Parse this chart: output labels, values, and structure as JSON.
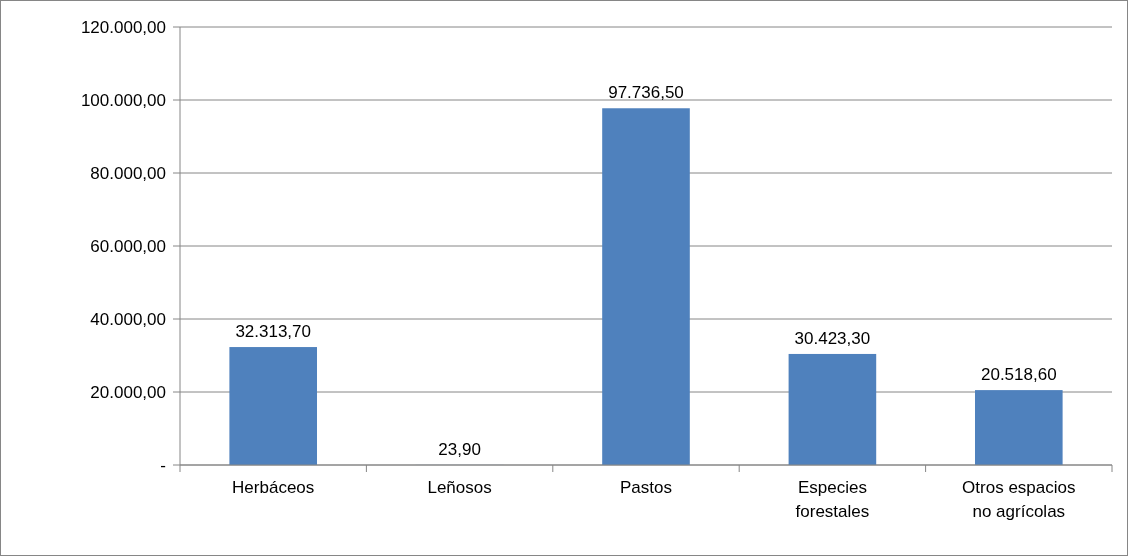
{
  "chart_data": {
    "type": "bar",
    "categories": [
      "Herbáceos",
      "Leñosos",
      "Pastos",
      "Especies forestales",
      "Otros espacios no agrícolas"
    ],
    "values": [
      32313.7,
      23.9,
      97736.5,
      30423.3,
      20518.6
    ],
    "value_labels": [
      "32.313,70",
      "23,90",
      "97.736,50",
      "30.423,30",
      "20.518,60"
    ],
    "color": "#4f81bd",
    "ylim": [
      0,
      120000
    ],
    "yticks": [
      {
        "value": 0,
        "label": "-"
      },
      {
        "value": 20000,
        "label": "20.000,00"
      },
      {
        "value": 40000,
        "label": "40.000,00"
      },
      {
        "value": 60000,
        "label": "60.000,00"
      },
      {
        "value": 80000,
        "label": "80.000,00"
      },
      {
        "value": 100000,
        "label": "100.000,00"
      },
      {
        "value": 120000,
        "label": "120.000,00"
      }
    ],
    "grid": "y"
  }
}
